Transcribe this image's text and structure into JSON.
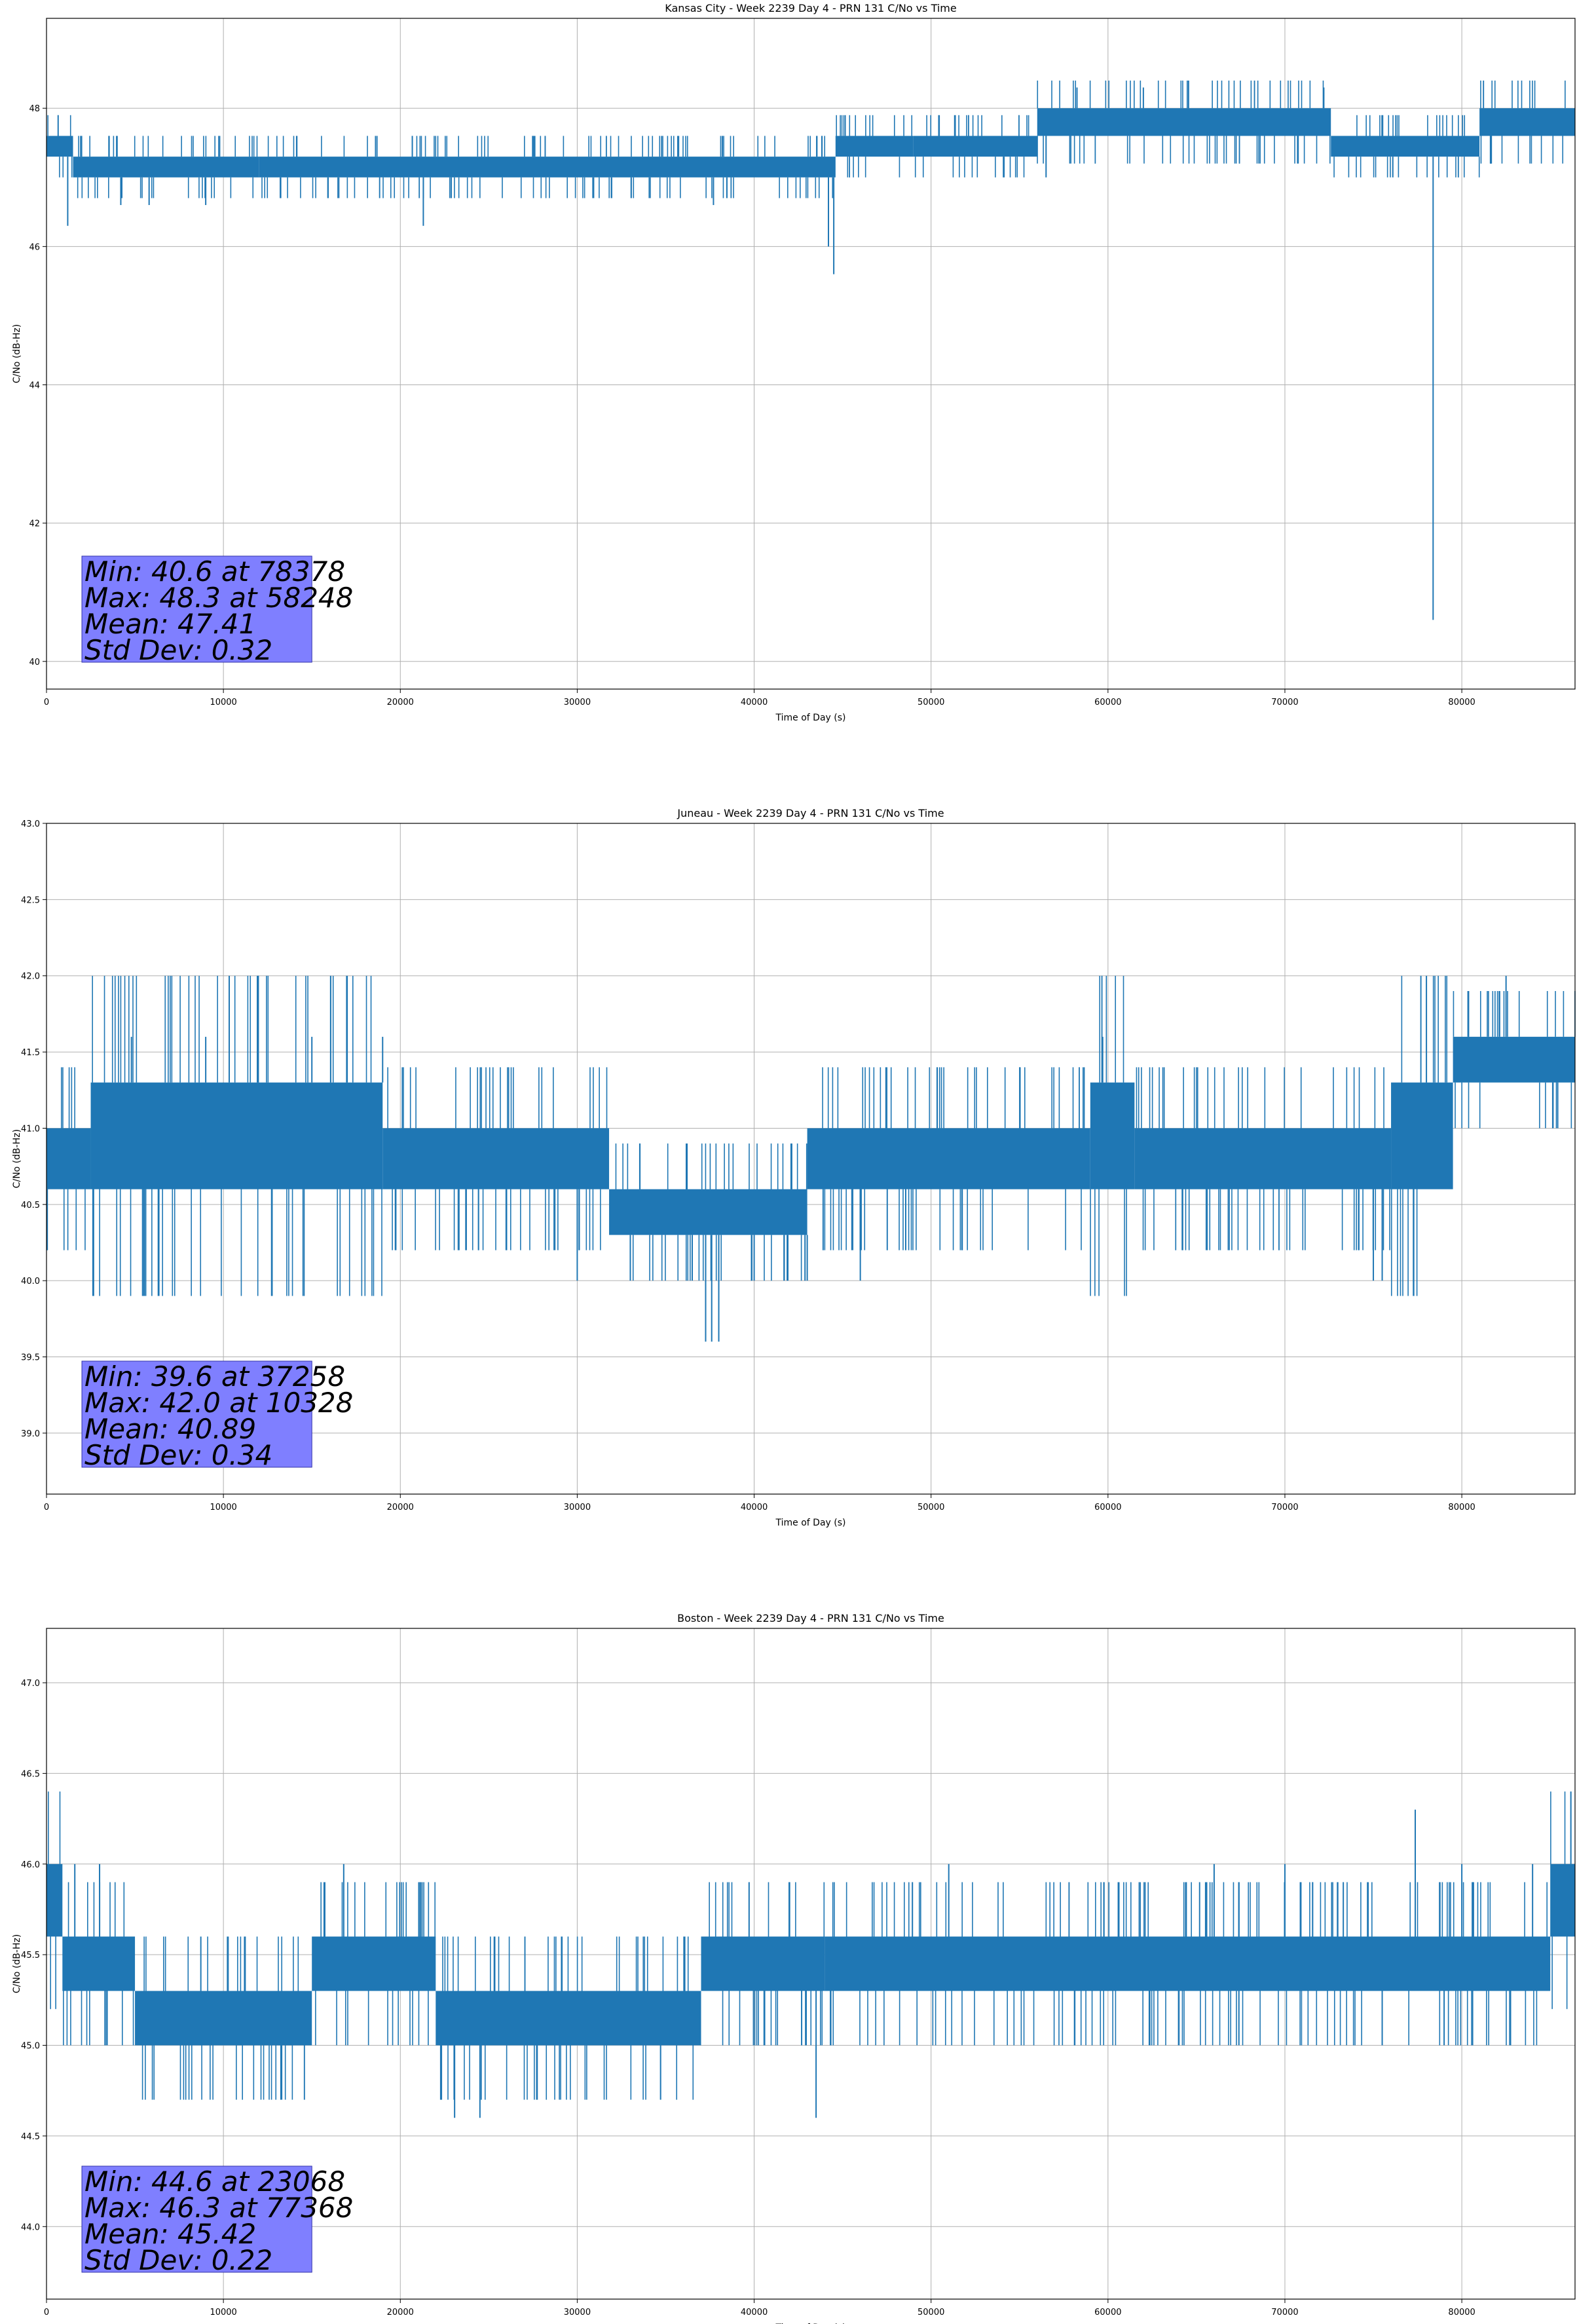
{
  "chart_data": [
    {
      "type": "line",
      "title": "Kansas City - Week 2239 Day 4 - PRN 131 C/No vs Time",
      "xlabel": "Time of Day (s)",
      "ylabel": "C/No (dB-Hz)",
      "xlim": [
        0,
        86400
      ],
      "ylim": [
        39.6,
        49.3
      ],
      "xticks": [
        0,
        10000,
        20000,
        30000,
        40000,
        50000,
        60000,
        70000,
        80000
      ],
      "yticks": [
        40,
        42,
        44,
        46,
        48
      ],
      "ytick_labels": [
        "40",
        "42",
        "44",
        "46",
        "48"
      ],
      "grid": true,
      "color": "#1f77b4",
      "band": [
        [
          0,
          47.3,
          47.6
        ],
        [
          1500,
          47.3,
          47.6
        ],
        [
          1500,
          47.0,
          47.3
        ],
        [
          12000,
          47.0,
          47.3
        ],
        [
          12000,
          47.0,
          47.3
        ],
        [
          44600,
          47.0,
          47.3
        ],
        [
          44600,
          47.3,
          47.6
        ],
        [
          49000,
          47.3,
          47.6
        ],
        [
          49000,
          47.3,
          47.6
        ],
        [
          56000,
          47.3,
          47.6
        ],
        [
          56000,
          47.6,
          48.0
        ],
        [
          72600,
          47.6,
          48.0
        ],
        [
          72600,
          47.3,
          47.6
        ],
        [
          81000,
          47.3,
          47.6
        ],
        [
          81000,
          47.6,
          48.0
        ],
        [
          86400,
          47.6,
          48.0
        ]
      ],
      "spikes": [
        [
          1200,
          46.3
        ],
        [
          4200,
          46.6
        ],
        [
          5800,
          46.6
        ],
        [
          9000,
          46.6
        ],
        [
          21300,
          46.3
        ],
        [
          37700,
          46.6
        ],
        [
          44500,
          45.6
        ],
        [
          44200,
          46.0
        ],
        [
          56500,
          47.0
        ],
        [
          76100,
          47.0
        ],
        [
          78378,
          40.6
        ],
        [
          58248,
          48.3
        ],
        [
          62000,
          48.3
        ],
        [
          72200,
          48.3
        ],
        [
          38200,
          47.6
        ],
        [
          18600,
          47.6
        ],
        [
          27600,
          47.6
        ]
      ],
      "stats": [
        "Min: 40.6 at 78378",
        "Max: 48.3 at 58248",
        "Mean: 47.41",
        "Std Dev: 0.32"
      ]
    },
    {
      "type": "line",
      "title": "Juneau - Week 2239 Day 4 - PRN 131 C/No vs Time",
      "xlabel": "Time of Day (s)",
      "ylabel": "C/No (dB-Hz)",
      "xlim": [
        0,
        86400
      ],
      "ylim": [
        38.6,
        43.0
      ],
      "xticks": [
        0,
        10000,
        20000,
        30000,
        40000,
        50000,
        60000,
        70000,
        80000
      ],
      "yticks": [
        39.0,
        39.5,
        40.0,
        40.5,
        41.0,
        41.5,
        42.0,
        42.5,
        43.0
      ],
      "ytick_labels": [
        "39.0",
        "39.5",
        "40.0",
        "40.5",
        "41.0",
        "41.5",
        "42.0",
        "42.5",
        "43.0"
      ],
      "grid": true,
      "color": "#1f77b4",
      "band": [
        [
          0,
          40.6,
          41.0
        ],
        [
          2500,
          40.6,
          41.0
        ],
        [
          2500,
          40.6,
          41.3
        ],
        [
          19000,
          40.6,
          41.3
        ],
        [
          19000,
          40.6,
          41.0
        ],
        [
          31800,
          40.6,
          41.0
        ],
        [
          31800,
          40.3,
          40.6
        ],
        [
          43000,
          40.3,
          40.6
        ],
        [
          43000,
          40.6,
          41.0
        ],
        [
          59000,
          40.6,
          41.0
        ],
        [
          59000,
          40.6,
          41.3
        ],
        [
          61500,
          40.6,
          41.3
        ],
        [
          61500,
          40.6,
          41.0
        ],
        [
          76000,
          40.6,
          41.0
        ],
        [
          76000,
          40.6,
          41.3
        ],
        [
          79500,
          40.6,
          41.3
        ],
        [
          79500,
          41.3,
          41.6
        ],
        [
          86400,
          41.3,
          41.6
        ]
      ],
      "spikes": [
        [
          10328,
          42.0
        ],
        [
          37258,
          39.6
        ],
        [
          37600,
          39.6
        ],
        [
          38000,
          39.6
        ],
        [
          78000,
          42.0
        ],
        [
          82500,
          42.0
        ],
        [
          30000,
          40.0
        ],
        [
          33000,
          40.0
        ],
        [
          36500,
          40.0
        ],
        [
          40000,
          40.0
        ],
        [
          43000,
          40.0
        ],
        [
          46000,
          40.0
        ],
        [
          75000,
          40.0
        ],
        [
          75500,
          40.0
        ],
        [
          59700,
          41.6
        ],
        [
          4800,
          41.6
        ],
        [
          9000,
          41.6
        ],
        [
          15000,
          41.6
        ],
        [
          19000,
          41.6
        ]
      ],
      "stats": [
        "Min: 39.6 at 37258",
        "Max: 42.0 at 10328",
        "Mean: 40.89",
        "Std Dev: 0.34"
      ]
    },
    {
      "type": "line",
      "title": "Boston - Week 2239 Day 4 - PRN 131 C/No vs Time",
      "xlabel": "Time of Day (s)",
      "ylabel": "C/No (dB-Hz)",
      "xlim": [
        0,
        86400
      ],
      "ylim": [
        43.6,
        47.3
      ],
      "xticks": [
        0,
        10000,
        20000,
        30000,
        40000,
        50000,
        60000,
        70000,
        80000
      ],
      "yticks": [
        44.0,
        44.5,
        45.0,
        45.5,
        46.0,
        46.5,
        47.0
      ],
      "ytick_labels": [
        "44.0",
        "44.5",
        "45.0",
        "45.5",
        "46.0",
        "46.5",
        "47.0"
      ],
      "grid": true,
      "color": "#1f77b4",
      "band": [
        [
          0,
          45.6,
          46.0
        ],
        [
          900,
          45.6,
          46.0
        ],
        [
          900,
          45.3,
          45.6
        ],
        [
          5000,
          45.3,
          45.6
        ],
        [
          5000,
          45.0,
          45.3
        ],
        [
          15000,
          45.0,
          45.3
        ],
        [
          15000,
          45.3,
          45.6
        ],
        [
          22000,
          45.3,
          45.6
        ],
        [
          22000,
          45.0,
          45.3
        ],
        [
          37000,
          45.0,
          45.3
        ],
        [
          37000,
          45.3,
          45.6
        ],
        [
          44000,
          45.3,
          45.6
        ],
        [
          44000,
          45.3,
          45.6
        ],
        [
          85000,
          45.3,
          45.6
        ],
        [
          85000,
          45.6,
          46.0
        ],
        [
          86400,
          45.6,
          46.0
        ]
      ],
      "spikes": [
        [
          23068,
          44.6
        ],
        [
          24500,
          44.6
        ],
        [
          43500,
          44.6
        ],
        [
          77368,
          46.3
        ],
        [
          16800,
          46.0
        ],
        [
          1600,
          46.0
        ],
        [
          3000,
          46.0
        ],
        [
          51000,
          46.0
        ],
        [
          66000,
          46.0
        ],
        [
          70000,
          46.0
        ],
        [
          80000,
          46.0
        ],
        [
          84000,
          46.0
        ],
        [
          75500,
          45.0
        ],
        [
          79000,
          45.0
        ],
        [
          67400,
          45.0
        ]
      ],
      "stats": [
        "Min: 44.6 at 23068",
        "Max: 46.3 at 77368",
        "Mean: 45.42",
        "Std Dev: 0.22"
      ]
    }
  ]
}
